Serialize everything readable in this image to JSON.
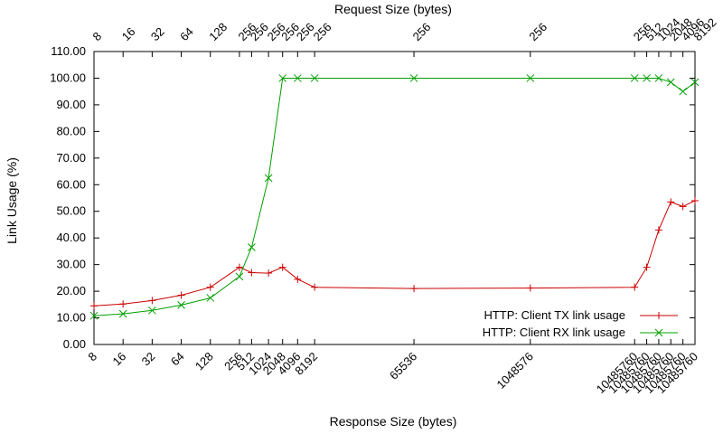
{
  "chart_data": {
    "type": "line",
    "title": "",
    "ylabel": "Link Usage (%)",
    "xlabel": "Response Size (bytes)",
    "x2label": "Request Size (bytes)",
    "ylim": [
      0,
      110
    ],
    "yticks": [
      "0.00",
      "10.00",
      "20.00",
      "30.00",
      "40.00",
      "50.00",
      "60.00",
      "70.00",
      "80.00",
      "90.00",
      "100.00",
      "110.00"
    ],
    "legend_position": "bottom-right",
    "grid": false,
    "points": [
      {
        "response": "8",
        "request": "8"
      },
      {
        "response": "16",
        "request": "16"
      },
      {
        "response": "32",
        "request": "32"
      },
      {
        "response": "64",
        "request": "64"
      },
      {
        "response": "128",
        "request": "128"
      },
      {
        "response": "256",
        "request": "256"
      },
      {
        "response": "512",
        "request": "256"
      },
      {
        "response": "1024",
        "request": "256"
      },
      {
        "response": "2048",
        "request": "256"
      },
      {
        "response": "4096",
        "request": "256"
      },
      {
        "response": "8192",
        "request": "256"
      },
      {
        "response": "65536",
        "request": "256"
      },
      {
        "response": "1048576",
        "request": "256"
      },
      {
        "response": "10485760",
        "request": "256"
      },
      {
        "response": "10485760",
        "request": "512"
      },
      {
        "response": "10485760",
        "request": "1024"
      },
      {
        "response": "10485760",
        "request": "2048"
      },
      {
        "response": "10485760",
        "request": "4096"
      },
      {
        "response": "10485760",
        "request": "8192"
      }
    ],
    "x_positions": [
      8,
      16,
      32,
      64,
      128,
      256,
      342,
      512,
      716,
      1024,
      1536,
      16384,
      262144,
      3145728,
      4194304,
      5592405,
      7456540,
      9942053,
      13256071
    ],
    "series": [
      {
        "name": "HTTP: Client TX link usage",
        "color": "#cc0000",
        "marker": "plus",
        "values": [
          14.5,
          15.2,
          16.5,
          18.5,
          21.5,
          29.0,
          27.0,
          26.8,
          29.0,
          24.5,
          21.5,
          21.0,
          21.2,
          21.5,
          29.0,
          43.0,
          53.5,
          51.8,
          54.0
        ]
      },
      {
        "name": "HTTP: Client RX link usage",
        "color": "#00a000",
        "marker": "cross",
        "values": [
          10.8,
          11.5,
          12.8,
          14.8,
          17.5,
          25.5,
          36.5,
          62.5,
          100.0,
          100.0,
          100.0,
          100.0,
          100.0,
          100.0,
          100.0,
          100.0,
          98.5,
          95.0,
          98.5
        ]
      }
    ]
  }
}
